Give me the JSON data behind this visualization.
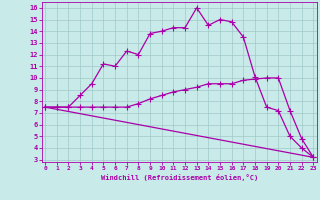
{
  "xlabel": "Windchill (Refroidissement éolien,°C)",
  "bg_color": "#c8eae8",
  "grid_color": "#a0c8c8",
  "line_color": "#aa00aa",
  "x_ticks": [
    0,
    1,
    2,
    3,
    4,
    5,
    6,
    7,
    8,
    9,
    10,
    11,
    12,
    13,
    14,
    15,
    16,
    17,
    18,
    19,
    20,
    21,
    22,
    23
  ],
  "y_ticks": [
    3,
    4,
    5,
    6,
    7,
    8,
    9,
    10,
    11,
    12,
    13,
    14,
    15,
    16
  ],
  "ylim": [
    2.8,
    16.5
  ],
  "xlim": [
    -0.3,
    23.3
  ],
  "line1_x": [
    0,
    1,
    2,
    3,
    4,
    5,
    6,
    7,
    8,
    9,
    10,
    11,
    12,
    13,
    14,
    15,
    16,
    17,
    18,
    19,
    20,
    21,
    22,
    23
  ],
  "line1_y": [
    7.5,
    7.5,
    7.5,
    8.5,
    9.5,
    11.2,
    11.0,
    12.3,
    12.0,
    13.8,
    14.0,
    14.3,
    14.3,
    16.0,
    14.5,
    15.0,
    14.8,
    13.5,
    10.1,
    7.5,
    7.2,
    5.0,
    4.0,
    3.2
  ],
  "line2_x": [
    0,
    1,
    2,
    3,
    4,
    5,
    6,
    7,
    8,
    9,
    10,
    11,
    12,
    13,
    14,
    15,
    16,
    17,
    18,
    19,
    20,
    21,
    22,
    23
  ],
  "line2_y": [
    7.5,
    7.5,
    7.5,
    7.5,
    7.5,
    7.5,
    7.5,
    7.5,
    7.8,
    8.2,
    8.5,
    8.8,
    9.0,
    9.2,
    9.5,
    9.5,
    9.5,
    9.8,
    9.9,
    10.0,
    10.0,
    7.2,
    4.8,
    3.2
  ],
  "line3_x": [
    0,
    23
  ],
  "line3_y": [
    7.5,
    3.2
  ]
}
